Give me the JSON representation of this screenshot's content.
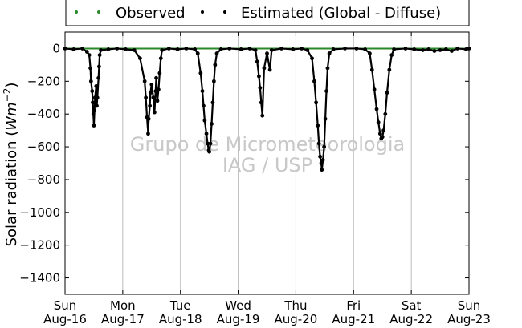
{
  "chart_data": {
    "type": "scatter",
    "ylabel": "Solar radiation (Wm^-2)",
    "ylabel_main": "Solar radiation (",
    "ylabel_unit_base": "Wm",
    "ylabel_unit_exp": "−2",
    "ylabel_close": ")",
    "ylim": [
      -1500,
      100
    ],
    "y_ticks": [
      0,
      -200,
      -400,
      -600,
      -800,
      -1000,
      -1200,
      -1400
    ],
    "x_ticks": [
      {
        "line1": "Sun",
        "line2": "Aug-16"
      },
      {
        "line1": "Mon",
        "line2": "Aug-17"
      },
      {
        "line1": "Tue",
        "line2": "Aug-18"
      },
      {
        "line1": "Wed",
        "line2": "Aug-19"
      },
      {
        "line1": "Thu",
        "line2": "Aug-20"
      },
      {
        "line1": "Fri",
        "line2": "Aug-21"
      },
      {
        "line1": "Sat",
        "line2": "Aug-22"
      },
      {
        "line1": "Sun",
        "line2": "Aug-23"
      }
    ],
    "grid": "vertical",
    "legend_position": "top",
    "series": [
      {
        "name": "Observed",
        "color": "#2a8a2a",
        "points": [
          [
            0,
            0
          ],
          [
            7,
            0
          ]
        ]
      },
      {
        "name": "Estimated (Global - Diffuse)",
        "color": "#000000",
        "points": [
          [
            0.0,
            0
          ],
          [
            0.15,
            -5
          ],
          [
            0.3,
            0
          ],
          [
            0.38,
            -20
          ],
          [
            0.42,
            -40
          ],
          [
            0.44,
            -120
          ],
          [
            0.45,
            -200
          ],
          [
            0.47,
            -260
          ],
          [
            0.48,
            -330
          ],
          [
            0.49,
            -400
          ],
          [
            0.5,
            -470
          ],
          [
            0.51,
            -380
          ],
          [
            0.52,
            -300
          ],
          [
            0.54,
            -230
          ],
          [
            0.55,
            -350
          ],
          [
            0.56,
            -300
          ],
          [
            0.58,
            -180
          ],
          [
            0.59,
            -110
          ],
          [
            0.6,
            -40
          ],
          [
            0.62,
            -10
          ],
          [
            0.75,
            -5
          ],
          [
            0.9,
            0
          ],
          [
            1.05,
            -5
          ],
          [
            1.2,
            -10
          ],
          [
            1.3,
            -60
          ],
          [
            1.38,
            -200
          ],
          [
            1.4,
            -300
          ],
          [
            1.42,
            -420
          ],
          [
            1.44,
            -520
          ],
          [
            1.45,
            -430
          ],
          [
            1.47,
            -350
          ],
          [
            1.48,
            -270
          ],
          [
            1.5,
            -220
          ],
          [
            1.53,
            -300
          ],
          [
            1.55,
            -390
          ],
          [
            1.57,
            -260
          ],
          [
            1.58,
            -180
          ],
          [
            1.6,
            -320
          ],
          [
            1.62,
            -250
          ],
          [
            1.64,
            -150
          ],
          [
            1.66,
            -60
          ],
          [
            1.68,
            -10
          ],
          [
            1.8,
            0
          ],
          [
            1.95,
            -5
          ],
          [
            2.1,
            0
          ],
          [
            2.25,
            -5
          ],
          [
            2.3,
            -30
          ],
          [
            2.35,
            -150
          ],
          [
            2.38,
            -260
          ],
          [
            2.4,
            -350
          ],
          [
            2.42,
            -440
          ],
          [
            2.45,
            -520
          ],
          [
            2.47,
            -580
          ],
          [
            2.49,
            -620
          ],
          [
            2.5,
            -630
          ],
          [
            2.52,
            -580
          ],
          [
            2.54,
            -460
          ],
          [
            2.56,
            -330
          ],
          [
            2.58,
            -200
          ],
          [
            2.6,
            -100
          ],
          [
            2.63,
            -30
          ],
          [
            2.7,
            -5
          ],
          [
            2.85,
            0
          ],
          [
            3.05,
            -5
          ],
          [
            3.2,
            0
          ],
          [
            3.3,
            -10
          ],
          [
            3.33,
            -80
          ],
          [
            3.36,
            -170
          ],
          [
            3.38,
            -240
          ],
          [
            3.4,
            -330
          ],
          [
            3.42,
            -410
          ],
          [
            3.45,
            -120
          ],
          [
            3.5,
            -30
          ],
          [
            3.55,
            -130
          ],
          [
            3.58,
            -10
          ],
          [
            3.75,
            0
          ],
          [
            3.95,
            -5
          ],
          [
            4.1,
            0
          ],
          [
            4.2,
            -10
          ],
          [
            4.28,
            -60
          ],
          [
            4.32,
            -200
          ],
          [
            4.35,
            -330
          ],
          [
            4.38,
            -470
          ],
          [
            4.4,
            -580
          ],
          [
            4.42,
            -660
          ],
          [
            4.44,
            -700
          ],
          [
            4.45,
            -740
          ],
          [
            4.47,
            -680
          ],
          [
            4.49,
            -600
          ],
          [
            4.51,
            -430
          ],
          [
            4.53,
            -260
          ],
          [
            4.55,
            -120
          ],
          [
            4.58,
            -30
          ],
          [
            4.65,
            -5
          ],
          [
            4.85,
            0
          ],
          [
            5.05,
            0
          ],
          [
            5.2,
            -5
          ],
          [
            5.28,
            -30
          ],
          [
            5.32,
            -130
          ],
          [
            5.36,
            -250
          ],
          [
            5.4,
            -370
          ],
          [
            5.43,
            -450
          ],
          [
            5.46,
            -520
          ],
          [
            5.48,
            -550
          ],
          [
            5.5,
            -540
          ],
          [
            5.52,
            -500
          ],
          [
            5.55,
            -400
          ],
          [
            5.58,
            -270
          ],
          [
            5.62,
            -130
          ],
          [
            5.66,
            -40
          ],
          [
            5.7,
            -5
          ],
          [
            5.9,
            0
          ],
          [
            6.05,
            -5
          ],
          [
            6.2,
            -10
          ],
          [
            6.3,
            -5
          ],
          [
            6.4,
            -15
          ],
          [
            6.5,
            -10
          ],
          [
            6.6,
            -5
          ],
          [
            6.7,
            -15
          ],
          [
            6.8,
            0
          ],
          [
            6.95,
            -5
          ],
          [
            7.0,
            0
          ]
        ]
      }
    ]
  },
  "watermark": {
    "line1": "Grupo de Micrometeorologia",
    "line2": "IAG / USP"
  }
}
